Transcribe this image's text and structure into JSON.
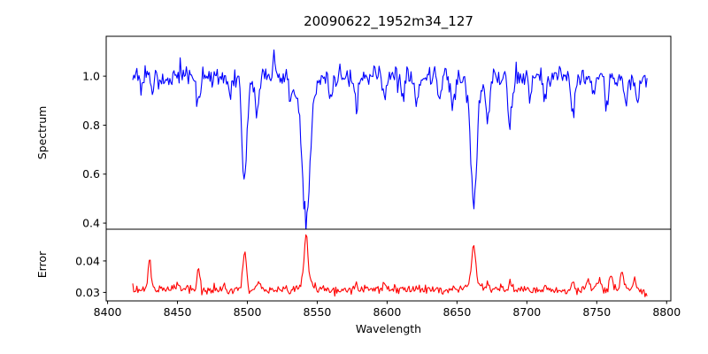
{
  "chart_data": {
    "type": "line",
    "title": "20090622_1952m34_127",
    "xlabel": "Wavelength",
    "grid": false,
    "legend": null,
    "xlim": [
      8399,
      8803
    ],
    "x_ticks": [
      8400,
      8450,
      8500,
      8550,
      8600,
      8650,
      8700,
      8750,
      8800
    ],
    "line_colors": {
      "spectrum": "#0000ff",
      "error": "#ff0000"
    },
    "axis_color": "#000000",
    "panels": [
      {
        "name": "spectrum",
        "ylabel": "Spectrum",
        "ylim": [
          0.375,
          1.163
        ],
        "y_ticks": [
          0.4,
          0.6,
          0.8,
          1.0
        ],
        "y_tick_labels": [
          "0.4",
          "0.6",
          "0.8",
          "1.0"
        ],
        "color": "#0000ff",
        "series": {
          "x_start": 8418,
          "x_end": 8786,
          "n_points": 500,
          "baseline": 1.0,
          "noise_sigma": 0.022,
          "seed": 20090622,
          "features": [
            {
              "c": 8424,
              "a": -0.05,
              "s": 1.2
            },
            {
              "c": 8433,
              "a": -0.04,
              "s": 1.0
            },
            {
              "c": 8465,
              "a": -0.11,
              "s": 1.4
            },
            {
              "c": 8487,
              "a": -0.05,
              "s": 1.2
            },
            {
              "c": 8498,
              "a": -0.42,
              "s": 1.8
            },
            {
              "c": 8507,
              "a": -0.15,
              "s": 1.4
            },
            {
              "c": 8519,
              "a": 0.1,
              "s": 0.6
            },
            {
              "c": 8532,
              "a": -0.05,
              "s": 1.5
            },
            {
              "c": 8542,
              "a": -0.52,
              "s": 2.6
            },
            {
              "c": 8542,
              "a": -0.08,
              "s": 7.0
            },
            {
              "c": 8560,
              "a": -0.05,
              "s": 1.2
            },
            {
              "c": 8578,
              "a": -0.11,
              "s": 1.4
            },
            {
              "c": 8598,
              "a": -0.09,
              "s": 1.2
            },
            {
              "c": 8611,
              "a": -0.08,
              "s": 1.2
            },
            {
              "c": 8621,
              "a": -0.09,
              "s": 1.3
            },
            {
              "c": 8637,
              "a": -0.07,
              "s": 1.2
            },
            {
              "c": 8647,
              "a": -0.11,
              "s": 1.4
            },
            {
              "c": 8662,
              "a": -0.46,
              "s": 2.0
            },
            {
              "c": 8662,
              "a": -0.06,
              "s": 6.0
            },
            {
              "c": 8672,
              "a": -0.18,
              "s": 1.2
            },
            {
              "c": 8688,
              "a": -0.21,
              "s": 1.4
            },
            {
              "c": 8702,
              "a": -0.07,
              "s": 1.2
            },
            {
              "c": 8713,
              "a": -0.08,
              "s": 1.2
            },
            {
              "c": 8733,
              "a": -0.15,
              "s": 1.4
            },
            {
              "c": 8747,
              "a": -0.07,
              "s": 1.1
            },
            {
              "c": 8757,
              "a": -0.11,
              "s": 1.2
            },
            {
              "c": 8771,
              "a": -0.12,
              "s": 1.1
            },
            {
              "c": 8779,
              "a": -0.11,
              "s": 1.1
            }
          ]
        },
        "key_features_read_from_plot": [
          {
            "wavelength": 8498,
            "minimum": 0.58
          },
          {
            "wavelength": 8542,
            "minimum": 0.4
          },
          {
            "wavelength": 8662,
            "minimum": 0.47
          },
          {
            "continuum": 1.0
          }
        ]
      },
      {
        "name": "error",
        "ylabel": "Error",
        "ylim": [
          0.0273,
          0.0501
        ],
        "y_ticks": [
          0.03,
          0.04
        ],
        "y_tick_labels": [
          "0.03",
          "0.04"
        ],
        "color": "#ff0000",
        "series": {
          "x_start": 8418,
          "x_end": 8786,
          "n_points": 500,
          "baseline": 0.0308,
          "noise_sigma": 0.0007,
          "seed": 1952,
          "features": [
            {
              "c": 8430,
              "a": 0.0085,
              "s": 1.1
            },
            {
              "c": 8450,
              "a": 0.0018,
              "s": 1.0
            },
            {
              "c": 8465,
              "a": 0.0062,
              "s": 1.1
            },
            {
              "c": 8483,
              "a": 0.0018,
              "s": 1.0
            },
            {
              "c": 8498,
              "a": 0.0115,
              "s": 1.3
            },
            {
              "c": 8508,
              "a": 0.0028,
              "s": 1.0
            },
            {
              "c": 8542,
              "a": 0.014,
              "s": 1.2
            },
            {
              "c": 8542,
              "a": 0.004,
              "s": 4.0
            },
            {
              "c": 8578,
              "a": 0.0018,
              "s": 1.0
            },
            {
              "c": 8598,
              "a": 0.0018,
              "s": 1.0
            },
            {
              "c": 8621,
              "a": 0.0018,
              "s": 1.0
            },
            {
              "c": 8648,
              "a": 0.002,
              "s": 1.0
            },
            {
              "c": 8662,
              "a": 0.011,
              "s": 1.3
            },
            {
              "c": 8662,
              "a": 0.003,
              "s": 4.0
            },
            {
              "c": 8672,
              "a": 0.002,
              "s": 1.0
            },
            {
              "c": 8688,
              "a": 0.0025,
              "s": 1.0
            },
            {
              "c": 8713,
              "a": 0.0015,
              "s": 1.0
            },
            {
              "c": 8733,
              "a": 0.002,
              "s": 1.0
            },
            {
              "c": 8744,
              "a": 0.003,
              "s": 1.2
            },
            {
              "c": 8752,
              "a": 0.003,
              "s": 1.1
            },
            {
              "c": 8760,
              "a": 0.0045,
              "s": 1.2
            },
            {
              "c": 8768,
              "a": 0.005,
              "s": 1.2
            },
            {
              "c": 8777,
              "a": 0.0035,
              "s": 1.2
            },
            {
              "c": 8786,
              "a": -0.0018,
              "s": 1.2
            }
          ]
        },
        "key_features_read_from_plot": [
          {
            "wavelength": 8430,
            "peak": 0.039
          },
          {
            "wavelength": 8465,
            "peak": 0.037
          },
          {
            "wavelength": 8498,
            "peak": 0.042
          },
          {
            "wavelength": 8542,
            "peak": 0.049
          },
          {
            "wavelength": 8662,
            "peak": 0.045
          },
          {
            "baseline": 0.031
          }
        ]
      }
    ]
  }
}
